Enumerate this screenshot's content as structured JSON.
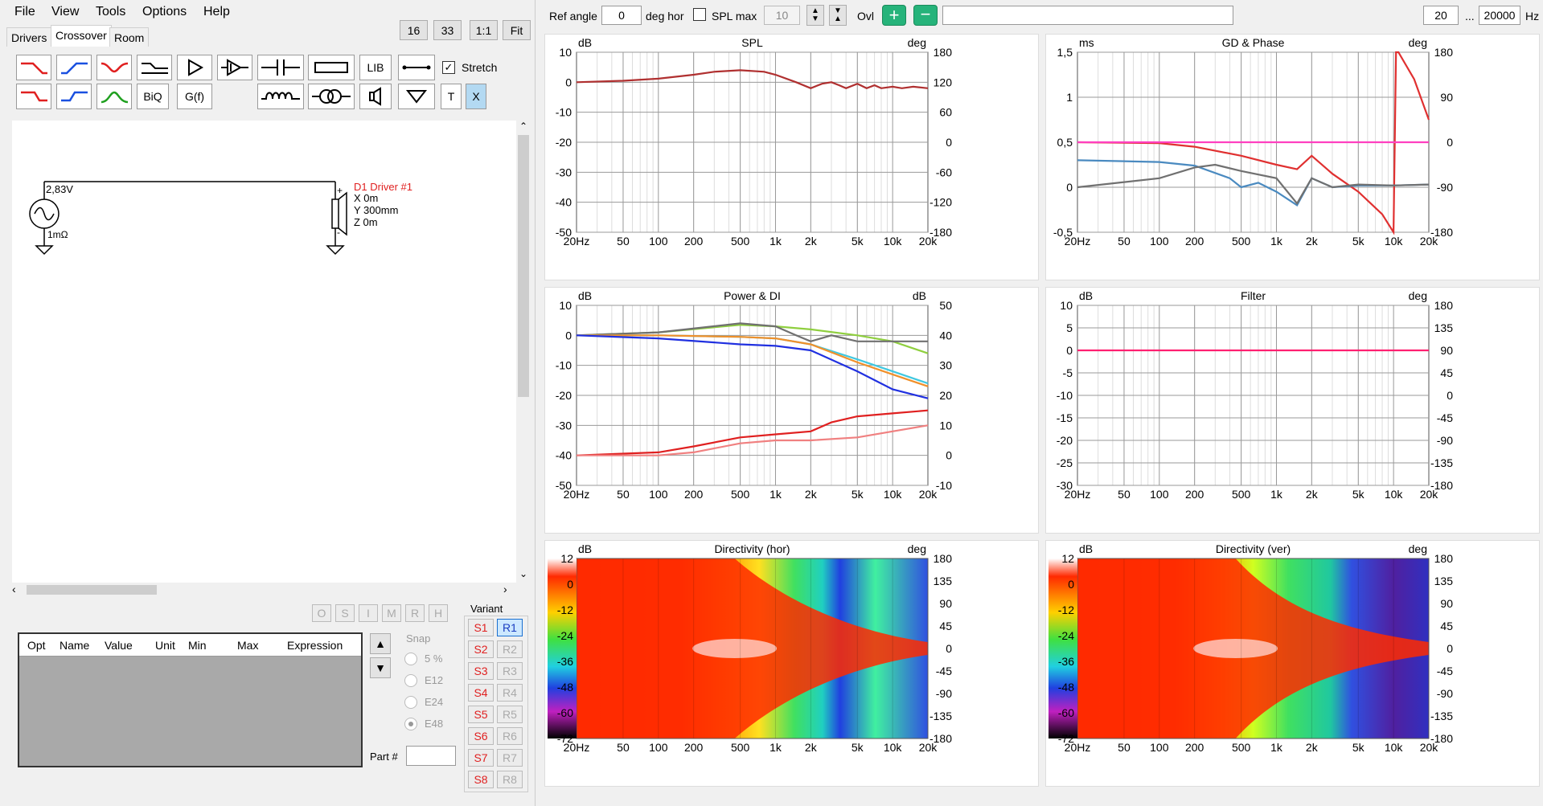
{
  "menu": [
    "File",
    "View",
    "Tools",
    "Options",
    "Help"
  ],
  "tabs": [
    "Drivers",
    "Crossover",
    "Room"
  ],
  "topbtns": [
    "16",
    "33",
    "1:1",
    "Fit"
  ],
  "toolbar": {
    "lib": "LIB",
    "stretch": "Stretch",
    "biq": "BiQ",
    "gf": "G(f)",
    "t": "T",
    "x": "X"
  },
  "top": {
    "ref_label": "Ref angle",
    "ref_value": "0",
    "deg_hor": "deg hor",
    "spl_max": "SPL max",
    "spl_value": "10",
    "ovl": "Ovl",
    "fmin": "20",
    "dots": "...",
    "fmax": "20000",
    "hz": "Hz"
  },
  "schematic": {
    "voltage": "2,83V",
    "res": "1mΩ",
    "driver": "D1 Driver #1",
    "x": "X 0m",
    "y": "Y 300mm",
    "z": "Z 0m",
    "plus": "+",
    "minus": "-"
  },
  "optbtns": [
    "O",
    "S",
    "I",
    "M",
    "R",
    "H"
  ],
  "table": {
    "headers": [
      "Opt",
      "Name",
      "Value",
      "Unit",
      "Min",
      "Max",
      "Expression"
    ]
  },
  "snap": {
    "label": "Snap",
    "options": [
      "5 %",
      "E12",
      "E24",
      "E48"
    ]
  },
  "part_label": "Part #",
  "variant": {
    "label": "Variant",
    "s": [
      "S1",
      "S2",
      "S3",
      "S4",
      "S5",
      "S6",
      "S7",
      "S8"
    ],
    "r": [
      "R1",
      "R2",
      "R3",
      "R4",
      "R5",
      "R6",
      "R7",
      "R8"
    ]
  },
  "xticks": [
    "20Hz",
    "50",
    "100",
    "200",
    "500",
    "1k",
    "2k",
    "5k",
    "10k",
    "20k"
  ],
  "charts": [
    {
      "id": "spl",
      "title": "SPL",
      "lunit": "dB",
      "runit": "deg",
      "left": [
        "10",
        "0",
        "-10",
        "-20",
        "-30",
        "-40",
        "-50"
      ],
      "right": [
        "180",
        "120",
        "60",
        "0",
        "-60",
        "-120",
        "-180"
      ]
    },
    {
      "id": "gd",
      "title": "GD & Phase",
      "lunit": "ms",
      "runit": "deg",
      "left": [
        "1,5",
        "1",
        "0,5",
        "0",
        "-0,5"
      ],
      "right": [
        "180",
        "90",
        "0",
        "-90",
        "-180"
      ]
    },
    {
      "id": "pdi",
      "title": "Power & DI",
      "lunit": "dB",
      "runit": "dB",
      "left": [
        "10",
        "0",
        "-10",
        "-20",
        "-30",
        "-40",
        "-50"
      ],
      "right": [
        "50",
        "40",
        "30",
        "20",
        "10",
        "0",
        "-10"
      ]
    },
    {
      "id": "filter",
      "title": "Filter",
      "lunit": "dB",
      "runit": "deg",
      "left": [
        "10",
        "5",
        "0",
        "-5",
        "-10",
        "-15",
        "-20",
        "-25",
        "-30"
      ],
      "right": [
        "180",
        "135",
        "90",
        "45",
        "0",
        "-45",
        "-90",
        "-135",
        "-180"
      ]
    },
    {
      "id": "dirh",
      "title": "Directivity (hor)",
      "lunit": "dB",
      "runit": "deg",
      "left": [
        "12",
        "0",
        "-12",
        "-24",
        "-36",
        "-48",
        "-60",
        "-72"
      ],
      "right": [
        "180",
        "135",
        "90",
        "45",
        "0",
        "-45",
        "-90",
        "-135",
        "-180"
      ]
    },
    {
      "id": "dirv",
      "title": "Directivity (ver)",
      "lunit": "dB",
      "runit": "deg",
      "left": [
        "12",
        "0",
        "-12",
        "-24",
        "-36",
        "-48",
        "-60",
        "-72"
      ],
      "right": [
        "180",
        "135",
        "90",
        "45",
        "0",
        "-45",
        "-90",
        "-135",
        "-180"
      ]
    }
  ],
  "chart_data": [
    {
      "type": "line",
      "title": "SPL",
      "ylim": [
        -50,
        10
      ],
      "xlim": [
        20,
        20000
      ],
      "xscale": "log",
      "series": [
        {
          "color": "#b03030",
          "x": [
            20,
            50,
            100,
            200,
            300,
            500,
            800,
            1000,
            1500,
            2000,
            2500,
            3000,
            3500,
            4000,
            5000,
            6000,
            7000,
            8000,
            10000,
            12000,
            15000,
            20000
          ],
          "y": [
            0,
            0.5,
            1.2,
            2.5,
            3.5,
            4,
            3.5,
            2.5,
            0,
            -2,
            -0.5,
            0,
            -1,
            -2,
            -0.5,
            -2,
            -1,
            -2,
            -1.5,
            -2,
            -1.5,
            -2
          ]
        }
      ]
    },
    {
      "type": "line",
      "title": "GD & Phase",
      "ylim": [
        -0.5,
        1.5
      ],
      "xlim": [
        20,
        20000
      ],
      "xscale": "log",
      "series": [
        {
          "color": "#e03030",
          "x": [
            20,
            100,
            200,
            500,
            1000,
            1500,
            2000,
            3000,
            5000,
            8000,
            10000,
            10500,
            11000,
            15000,
            20000
          ],
          "y": [
            0.5,
            0.49,
            0.45,
            0.35,
            0.25,
            0.2,
            0.35,
            0.15,
            -0.05,
            -0.3,
            -0.5,
            1.5,
            1.5,
            1.2,
            0.75
          ]
        },
        {
          "color": "#ff40c0",
          "x": [
            20,
            20000
          ],
          "y": [
            0.5,
            0.5
          ]
        },
        {
          "color": "#4a8ac0",
          "x": [
            20,
            100,
            200,
            400,
            500,
            700,
            1000,
            1500,
            2000,
            3000,
            5000,
            10000,
            20000
          ],
          "y": [
            0.3,
            0.28,
            0.24,
            0.1,
            0.0,
            0.05,
            -0.05,
            -0.2,
            0.1,
            0.0,
            0.02,
            0.02,
            0.03
          ]
        },
        {
          "color": "#707070",
          "x": [
            20,
            100,
            200,
            300,
            500,
            1000,
            1500,
            2000,
            3000,
            5000,
            10000,
            20000
          ],
          "y": [
            0.0,
            0.1,
            0.22,
            0.25,
            0.18,
            0.1,
            -0.18,
            0.1,
            0.0,
            0.03,
            0.02,
            0.03
          ]
        }
      ]
    },
    {
      "type": "line",
      "title": "Power & DI",
      "ylim": [
        -50,
        10
      ],
      "xlim": [
        20,
        20000
      ],
      "xscale": "log",
      "series": [
        {
          "color": "#8fcf3f",
          "x": [
            20,
            100,
            500,
            1000,
            2000,
            5000,
            10000,
            20000
          ],
          "y": [
            0,
            1,
            3.5,
            3,
            2,
            0,
            -2,
            -6
          ]
        },
        {
          "color": "#707070",
          "x": [
            20,
            100,
            500,
            1000,
            1500,
            2000,
            3000,
            5000,
            10000,
            20000
          ],
          "y": [
            0,
            1,
            4,
            3,
            0,
            -2,
            0,
            -2,
            -2,
            -2
          ]
        },
        {
          "color": "#40c8e0",
          "x": [
            20,
            100,
            500,
            1000,
            2000,
            5000,
            10000,
            20000
          ],
          "y": [
            0,
            0,
            -0.5,
            -1,
            -3,
            -8,
            -12,
            -16
          ]
        },
        {
          "color": "#f0902a",
          "x": [
            20,
            100,
            500,
            1000,
            2000,
            5000,
            10000,
            20000
          ],
          "y": [
            0,
            0,
            -0.5,
            -1,
            -3,
            -9,
            -13,
            -17
          ]
        },
        {
          "color": "#2030e0",
          "x": [
            20,
            100,
            500,
            1000,
            2000,
            5000,
            10000,
            20000
          ],
          "y": [
            0,
            -1,
            -3,
            -3.5,
            -5,
            -12,
            -18,
            -21
          ]
        },
        {
          "color": "#e02020",
          "x": [
            20,
            100,
            200,
            500,
            1000,
            2000,
            3000,
            5000,
            10000,
            20000
          ],
          "y": [
            -40,
            -39,
            -37,
            -34,
            -33,
            -32,
            -29,
            -27,
            -26,
            -25
          ]
        },
        {
          "color": "#f08080",
          "x": [
            20,
            100,
            200,
            500,
            1000,
            2000,
            5000,
            10000,
            20000
          ],
          "y": [
            -40,
            -40,
            -39,
            -36,
            -35,
            -35,
            -34,
            -32,
            -30
          ]
        }
      ]
    },
    {
      "type": "line",
      "title": "Filter",
      "ylim": [
        -30,
        10
      ],
      "xlim": [
        20,
        20000
      ],
      "xscale": "log",
      "series": [
        {
          "color": "#ff2070",
          "x": [
            20,
            20000
          ],
          "y": [
            0,
            0
          ]
        }
      ]
    },
    {
      "type": "heatmap",
      "title": "Directivity (hor)",
      "zlim": [
        -72,
        12
      ],
      "ylim": [
        -180,
        180
      ],
      "xlim": [
        20,
        20000
      ]
    },
    {
      "type": "heatmap",
      "title": "Directivity (ver)",
      "zlim": [
        -72,
        12
      ],
      "ylim": [
        -180,
        180
      ],
      "xlim": [
        20,
        20000
      ]
    }
  ]
}
